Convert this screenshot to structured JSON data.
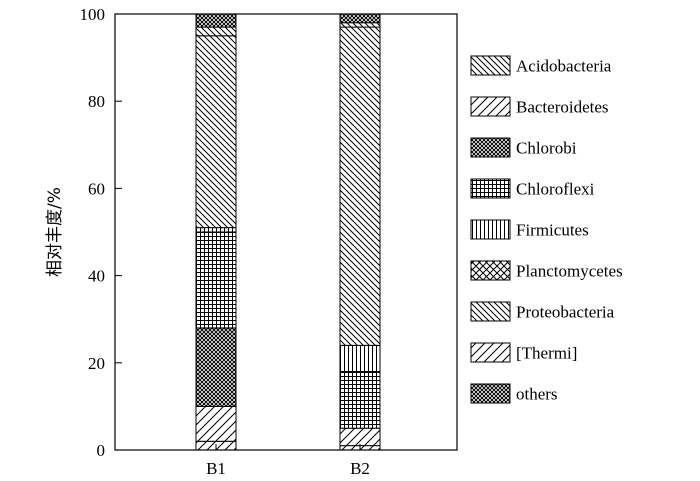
{
  "chart_data": {
    "type": "bar",
    "stacked": true,
    "ylabel": "相对丰度/%",
    "xlabel": "",
    "ylim": [
      0,
      100
    ],
    "yticks": [
      0,
      20,
      40,
      60,
      80,
      100
    ],
    "categories": [
      "B1",
      "B2"
    ],
    "legend_position": "right",
    "series": [
      {
        "name": "[Thermi]",
        "pattern": "forward-hatch",
        "values": [
          2,
          1
        ]
      },
      {
        "name": "Bacteroidetes",
        "pattern": "forward-hatch",
        "values": [
          8,
          4
        ]
      },
      {
        "name": "Chlorobi",
        "pattern": "dense-crosshatch",
        "values": [
          18,
          0
        ]
      },
      {
        "name": "Chloroflexi",
        "pattern": "grid",
        "values": [
          22,
          13
        ]
      },
      {
        "name": "Firmicutes",
        "pattern": "vertical-lines",
        "values": [
          1,
          6
        ]
      },
      {
        "name": "Proteobacteria",
        "pattern": "back-hatch",
        "values": [
          44,
          73
        ]
      },
      {
        "name": "Acidobacteria",
        "pattern": "back-hatch",
        "values": [
          2,
          1
        ]
      },
      {
        "name": "Planctomycetes",
        "pattern": "crosshatch",
        "values": [
          0,
          0
        ]
      },
      {
        "name": "others",
        "pattern": "dense-crosshatch",
        "values": [
          3,
          2
        ]
      }
    ],
    "legend_order": [
      "Acidobacteria",
      "Bacteroidetes",
      "Chlorobi",
      "Chloroflexi",
      "Firmicutes",
      "Planctomycetes",
      "Proteobacteria",
      "[Thermi]",
      "others"
    ]
  }
}
